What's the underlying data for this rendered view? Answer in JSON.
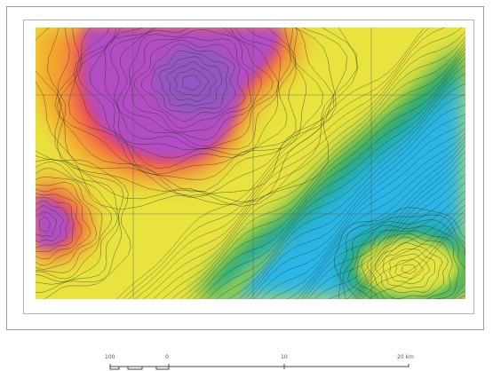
{
  "map": {
    "palette": [
      "#27b7ea",
      "#1fa35a",
      "#9fd14a",
      "#e6e641",
      "#f2d13a",
      "#f7a52b",
      "#ee3a4a",
      "#b24ec4",
      "#8e58b7"
    ],
    "contour_color": "#222222",
    "grid_color": "#555555"
  },
  "scale_bar": {
    "labels": [
      "100",
      "0",
      "10",
      "20 km"
    ]
  }
}
